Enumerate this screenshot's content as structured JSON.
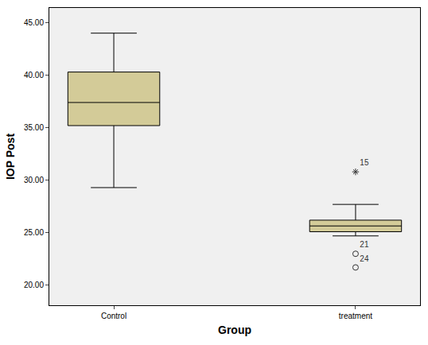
{
  "chart_data": {
    "type": "box",
    "x_label": "Group",
    "y_label": "IOP Post",
    "categories": [
      "Control",
      "treatment"
    ],
    "color": "#d3cb98",
    "ylim": [
      18.1,
      46.4
    ],
    "yticks": [
      {
        "value": 20,
        "label": "20.00"
      },
      {
        "value": 25,
        "label": "25.00"
      },
      {
        "value": 30,
        "label": "30.00"
      },
      {
        "value": 35,
        "label": "35.00"
      },
      {
        "value": 40,
        "label": "40.00"
      },
      {
        "value": 45,
        "label": "45.00"
      }
    ],
    "boxes": [
      {
        "category": "Control",
        "lower_whisker": 29.3,
        "q1": 35.2,
        "median": 37.4,
        "q3": 40.3,
        "upper_whisker": 44.0,
        "outliers": []
      },
      {
        "category": "treatment",
        "lower_whisker": 24.7,
        "q1": 25.1,
        "median": 25.65,
        "q3": 26.2,
        "upper_whisker": 27.7,
        "outliers": [
          {
            "value": 30.8,
            "label": "15",
            "marker": "asterisk"
          },
          {
            "value": 23.0,
            "label": "21",
            "marker": "circle"
          },
          {
            "value": 21.7,
            "label": "24",
            "marker": "circle"
          }
        ]
      }
    ]
  }
}
